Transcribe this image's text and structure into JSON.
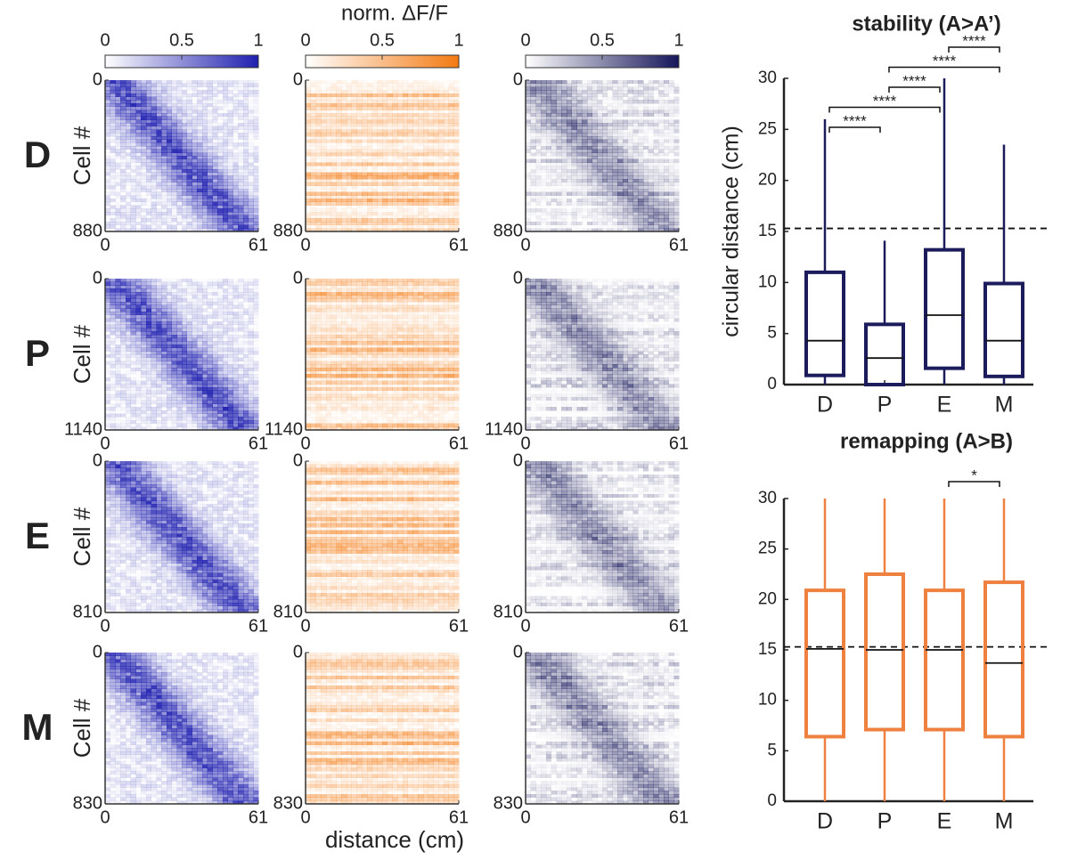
{
  "chart_data": [
    {
      "type": "heatmap_grid",
      "colorbar_title": "norm. ΔF/F",
      "colorbars": [
        {
          "ticks": [
            0,
            0.5,
            1
          ],
          "color": "#1f1fb0"
        },
        {
          "ticks": [
            0,
            0.5,
            1
          ],
          "color": "#f47a12"
        },
        {
          "ticks": [
            0,
            0.5,
            1
          ],
          "color": "#15155a"
        }
      ],
      "xlabel": "distance (cm)",
      "xlim": [
        0,
        61
      ],
      "xticks": [
        0,
        61
      ],
      "ylabel": "Cell #",
      "rows": [
        {
          "label": "D",
          "ylim": [
            0,
            880
          ],
          "yticks": [
            0,
            880
          ]
        },
        {
          "label": "P",
          "ylim": [
            0,
            1140
          ],
          "yticks": [
            0,
            1140
          ]
        },
        {
          "label": "E",
          "ylim": [
            0,
            810
          ],
          "yticks": [
            0,
            810
          ]
        },
        {
          "label": "M",
          "ylim": [
            0,
            830
          ],
          "yticks": [
            0,
            830
          ]
        }
      ]
    },
    {
      "type": "box",
      "title": "stability (A>A’)",
      "ylabel": "circular distance (cm)",
      "categories": [
        "D",
        "P",
        "E",
        "M"
      ],
      "color": "#1c1c5c",
      "ylim": [
        0,
        30
      ],
      "yticks": [
        0,
        5,
        10,
        15,
        20,
        25,
        30
      ],
      "hline": 15.3,
      "boxes": [
        {
          "min": 0,
          "q1": 0.9,
          "median": 4.3,
          "q3": 11,
          "max": 26
        },
        {
          "min": 0,
          "q1": 0,
          "median": 2.6,
          "q3": 5.9,
          "max": 14.1
        },
        {
          "min": 0,
          "q1": 1.6,
          "median": 6.8,
          "q3": 13.2,
          "max": 30
        },
        {
          "min": 0,
          "q1": 0.8,
          "median": 4.3,
          "q3": 9.9,
          "max": 23.5
        }
      ],
      "significance": [
        {
          "pair": [
            "D",
            "P"
          ],
          "label": "****"
        },
        {
          "pair": [
            "D",
            "E"
          ],
          "label": "****"
        },
        {
          "pair": [
            "P",
            "E"
          ],
          "label": "****"
        },
        {
          "pair": [
            "P",
            "M"
          ],
          "label": "****"
        },
        {
          "pair": [
            "E",
            "M"
          ],
          "label": "****"
        }
      ]
    },
    {
      "type": "box",
      "title": "remapping (A>B)",
      "categories": [
        "D",
        "P",
        "E",
        "M"
      ],
      "color": "#ee8040",
      "ylim": [
        0,
        30
      ],
      "yticks": [
        0,
        5,
        10,
        15,
        20,
        25,
        30
      ],
      "hline": 15.3,
      "boxes": [
        {
          "min": 0,
          "q1": 6.4,
          "median": 15.1,
          "q3": 20.9,
          "max": 30
        },
        {
          "min": 0,
          "q1": 7.1,
          "median": 15,
          "q3": 22.5,
          "max": 30
        },
        {
          "min": 0,
          "q1": 7.1,
          "median": 15,
          "q3": 20.9,
          "max": 30
        },
        {
          "min": 0,
          "q1": 6.4,
          "median": 13.7,
          "q3": 21.7,
          "max": 30
        }
      ],
      "significance": [
        {
          "pair": [
            "E",
            "M"
          ],
          "label": "*"
        }
      ]
    }
  ]
}
